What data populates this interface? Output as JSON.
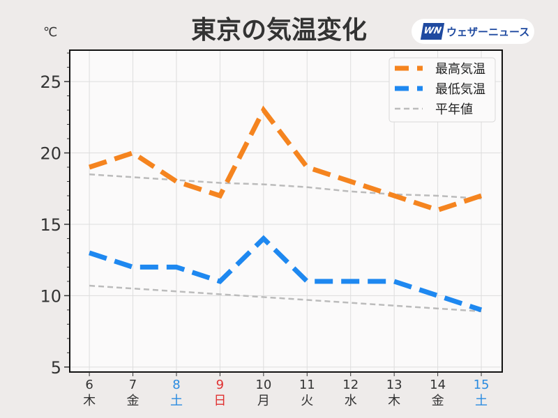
{
  "chart_data": {
    "type": "line",
    "title": "東京の気温変化",
    "ylabel": "℃",
    "ylim": [
      4.65,
      27.2
    ],
    "xlim": [
      5.55,
      15.48
    ],
    "yticks": [
      5,
      10,
      15,
      20,
      25
    ],
    "grid": true,
    "legend_position": "top-right",
    "x": [
      6,
      7,
      8,
      9,
      10,
      11,
      12,
      13,
      14,
      15
    ],
    "x_labels": [
      "6",
      "7",
      "8",
      "9",
      "10",
      "11",
      "12",
      "13",
      "14",
      "15"
    ],
    "weekday_labels": [
      "木",
      "金",
      "土",
      "日",
      "月",
      "火",
      "水",
      "木",
      "金",
      "土"
    ],
    "label_colors": [
      "#333333",
      "#333333",
      "#2a8be0",
      "#e03030",
      "#333333",
      "#333333",
      "#333333",
      "#333333",
      "#333333",
      "#2a8be0"
    ],
    "series": [
      {
        "name": "最高気温",
        "color": "#f5841f",
        "style": "dash-thick",
        "values": [
          19,
          20,
          18,
          17,
          23,
          19,
          18,
          17,
          16,
          17
        ]
      },
      {
        "name": "最低気温",
        "color": "#1e88f0",
        "style": "dash-thick",
        "values": [
          13,
          12,
          12,
          11,
          14,
          11,
          11,
          11,
          10,
          9
        ]
      },
      {
        "name": "平年値",
        "color": "#bbbbbb",
        "style": "dash-thin",
        "values": [
          18.5,
          18.3,
          18.1,
          17.9,
          17.8,
          17.6,
          17.3,
          17.1,
          17.0,
          16.8
        ]
      },
      {
        "name": "平年値_low",
        "legend": false,
        "color": "#bbbbbb",
        "style": "dash-thin",
        "values": [
          10.7,
          10.5,
          10.3,
          10.1,
          9.9,
          9.7,
          9.5,
          9.3,
          9.1,
          8.9
        ]
      }
    ]
  },
  "logo": {
    "mark": "WN",
    "text": "ウェザーニュース"
  }
}
